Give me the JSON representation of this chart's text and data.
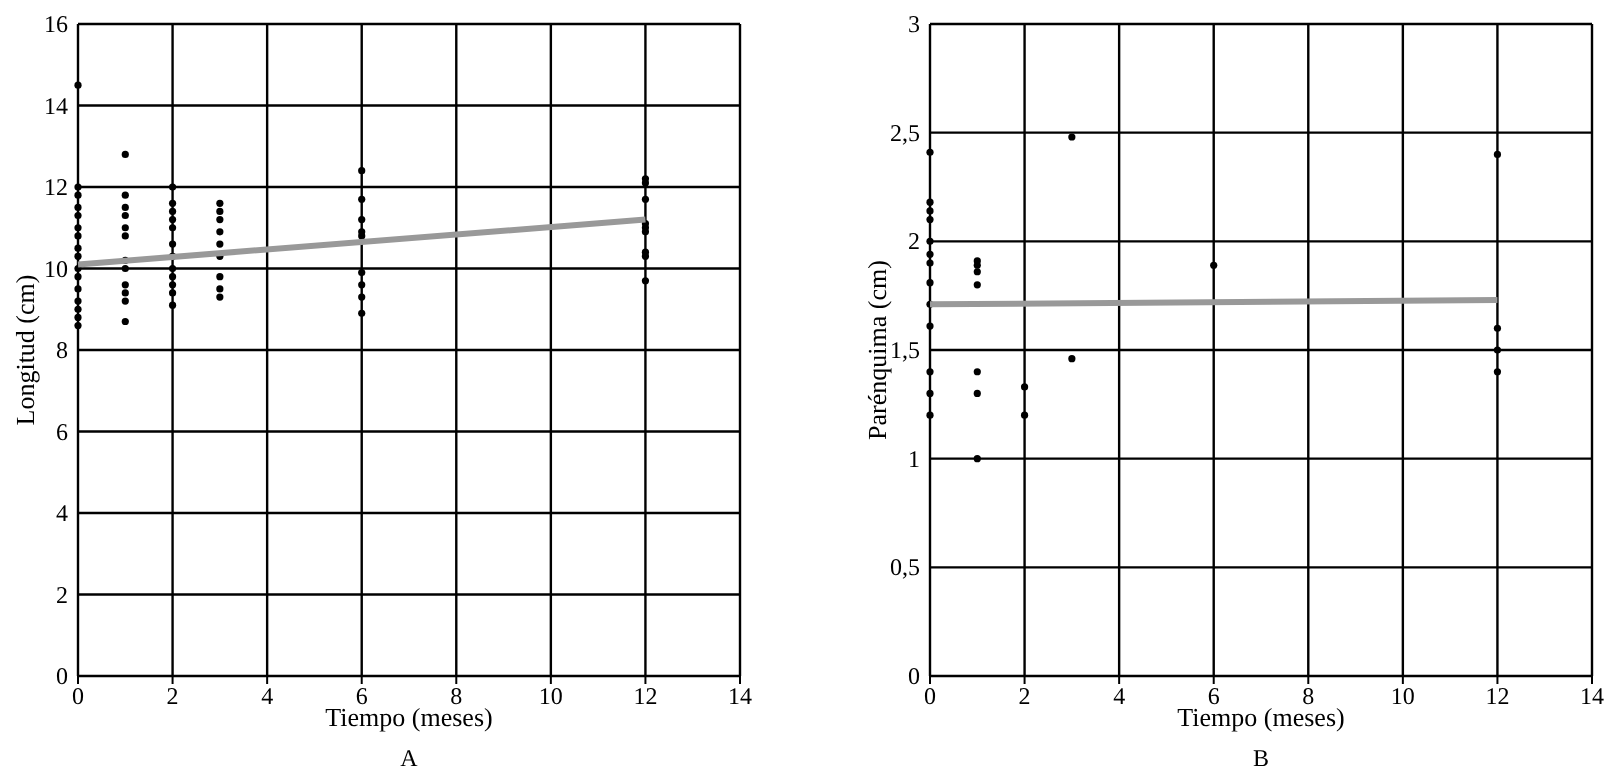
{
  "chart_data": [
    {
      "type": "scatter",
      "xlabel": "Tiempo (meses)",
      "ylabel": "Longitud (cm)",
      "annotations": [
        "A"
      ],
      "xlim": [
        0,
        14
      ],
      "xticks": [
        0,
        2,
        4,
        6,
        8,
        10,
        12,
        14
      ],
      "ylim": [
        0,
        16
      ],
      "yticks": [
        0,
        2,
        4,
        6,
        8,
        10,
        12,
        14,
        16
      ],
      "grid": true,
      "series": [
        {
          "type": "scatter",
          "marker": "circle",
          "color": "#000000",
          "x": [
            0,
            0,
            0,
            0,
            0,
            0,
            0,
            0,
            0,
            0,
            0,
            0,
            0,
            0,
            0,
            0,
            1,
            1,
            1,
            1,
            1,
            1,
            1,
            1,
            1,
            1,
            1,
            1,
            2,
            2,
            2,
            2,
            2,
            2,
            2,
            2,
            2,
            2,
            2,
            2,
            3,
            3,
            3,
            3,
            3,
            3,
            3,
            3,
            3,
            6,
            6,
            6,
            6,
            6,
            6,
            6,
            6,
            6,
            12,
            12,
            12,
            12,
            12,
            12,
            12,
            12,
            12
          ],
          "values": [
            14.5,
            12.0,
            11.8,
            11.5,
            11.3,
            11.0,
            10.8,
            10.5,
            10.3,
            10.0,
            9.8,
            9.5,
            9.2,
            9.0,
            8.8,
            8.6,
            12.8,
            11.8,
            11.5,
            11.3,
            11.0,
            10.8,
            10.2,
            10.0,
            9.6,
            9.4,
            9.2,
            8.7,
            12.0,
            11.6,
            11.4,
            11.2,
            11.0,
            10.6,
            10.3,
            10.0,
            9.8,
            9.6,
            9.4,
            9.1,
            11.6,
            11.4,
            11.2,
            10.9,
            10.6,
            10.3,
            9.8,
            9.5,
            9.3,
            12.4,
            11.7,
            11.2,
            10.9,
            10.8,
            9.9,
            9.6,
            9.3,
            8.9,
            12.2,
            12.1,
            11.7,
            11.1,
            11.0,
            10.9,
            10.4,
            10.3,
            9.7
          ]
        },
        {
          "type": "line",
          "color": "#999999",
          "x": [
            0,
            12
          ],
          "values": [
            10.1,
            11.2
          ]
        }
      ]
    },
    {
      "type": "scatter",
      "xlabel": "Tiempo (meses)",
      "ylabel": "Parénquima (cm)",
      "annotations": [
        "B"
      ],
      "xlim": [
        0,
        14
      ],
      "xticks": [
        0,
        2,
        4,
        6,
        8,
        10,
        12,
        14
      ],
      "ylim": [
        0,
        3
      ],
      "yticks": [
        0,
        {
          "value": 0.5,
          "label": "0,5"
        },
        1,
        {
          "value": 1.5,
          "label": "1,5"
        },
        2,
        {
          "value": 2.5,
          "label": "2,5"
        },
        3
      ],
      "grid": true,
      "series": [
        {
          "type": "scatter",
          "marker": "circle",
          "color": "#000000",
          "x": [
            0,
            0,
            0,
            0,
            0,
            0,
            0,
            0,
            0,
            0,
            0,
            0,
            0,
            1,
            1,
            1,
            1,
            1,
            1,
            1,
            2,
            2,
            3,
            3,
            6,
            12,
            12,
            12,
            12
          ],
          "values": [
            2.41,
            2.18,
            2.14,
            2.1,
            2.0,
            1.94,
            1.9,
            1.81,
            1.71,
            1.61,
            1.4,
            1.3,
            1.2,
            1.91,
            1.89,
            1.86,
            1.8,
            1.4,
            1.3,
            1.0,
            1.33,
            1.2,
            2.48,
            1.46,
            1.89,
            2.4,
            1.6,
            1.5,
            1.4
          ]
        },
        {
          "type": "line",
          "color": "#999999",
          "x": [
            0,
            12
          ],
          "values": [
            1.71,
            1.73
          ]
        }
      ]
    }
  ]
}
